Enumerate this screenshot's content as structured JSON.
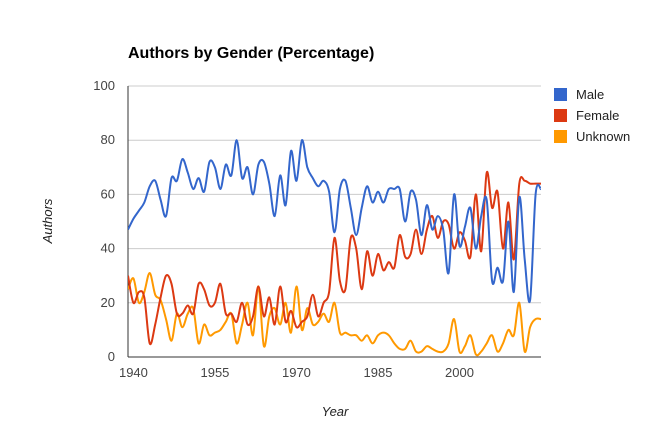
{
  "chart_data": {
    "type": "line",
    "title": "Authors by Gender (Percentage)",
    "xlabel": "Year",
    "ylabel": "Authors",
    "xlim": [
      1939,
      2015
    ],
    "ylim": [
      0,
      100
    ],
    "x_ticks": [
      "1940",
      "1955",
      "1970",
      "1985",
      "2000"
    ],
    "y_ticks": [
      "0",
      "20",
      "40",
      "60",
      "80",
      "100"
    ],
    "grid": true,
    "legend_position": "right",
    "x": [
      1939,
      1940,
      1941,
      1942,
      1943,
      1944,
      1945,
      1946,
      1947,
      1948,
      1949,
      1950,
      1951,
      1952,
      1953,
      1954,
      1955,
      1956,
      1957,
      1958,
      1959,
      1960,
      1961,
      1962,
      1963,
      1964,
      1965,
      1966,
      1967,
      1968,
      1969,
      1970,
      1971,
      1972,
      1973,
      1974,
      1975,
      1976,
      1977,
      1978,
      1979,
      1980,
      1981,
      1982,
      1983,
      1984,
      1985,
      1986,
      1987,
      1988,
      1989,
      1990,
      1991,
      1992,
      1993,
      1994,
      1995,
      1996,
      1997,
      1998,
      1999,
      2000,
      2001,
      2002,
      2003,
      2004,
      2005,
      2006,
      2007,
      2008,
      2009,
      2010,
      2011,
      2012,
      2013,
      2014,
      2015
    ],
    "series": [
      {
        "name": "Male",
        "color": "#3366cc",
        "values": [
          47,
          51,
          54,
          57,
          63,
          65,
          58,
          52,
          66,
          65,
          73,
          68,
          62,
          66,
          61,
          72,
          70,
          62,
          71,
          67,
          80,
          66,
          70,
          60,
          71,
          72,
          64,
          52,
          67,
          56,
          76,
          65,
          80,
          70,
          66,
          63,
          65,
          61,
          46,
          62,
          65,
          55,
          45,
          55,
          63,
          57,
          61,
          57,
          62,
          62,
          62,
          50,
          61,
          58,
          45,
          56,
          47,
          52,
          47,
          31,
          60,
          41,
          48,
          55,
          40,
          52,
          58,
          28,
          33,
          28,
          50,
          24,
          59,
          36,
          21,
          60,
          62
        ]
      },
      {
        "name": "Female",
        "color": "#dc3912",
        "values": [
          30,
          20,
          24,
          22,
          5,
          12,
          22,
          30,
          27,
          16,
          16,
          19,
          16,
          27,
          25,
          19,
          20,
          27,
          16,
          16,
          13,
          20,
          12,
          15,
          26,
          15,
          22,
          12,
          26,
          13,
          17,
          11,
          13,
          15,
          23,
          15,
          20,
          24,
          44,
          28,
          25,
          44,
          40,
          25,
          39,
          30,
          38,
          32,
          35,
          33,
          45,
          37,
          38,
          47,
          38,
          47,
          52,
          44,
          50,
          49,
          40,
          46,
          43,
          37,
          60,
          39,
          68,
          55,
          61,
          40,
          57,
          36,
          64,
          65,
          64,
          64,
          64
        ]
      },
      {
        "name": "Unknown",
        "color": "#ff9900",
        "values": [
          25,
          29,
          20,
          24,
          31,
          23,
          21,
          14,
          6,
          16,
          11,
          16,
          18,
          5,
          12,
          8,
          9,
          10,
          13,
          16,
          5,
          12,
          20,
          8,
          26,
          4,
          15,
          18,
          12,
          20,
          9,
          26,
          10,
          18,
          12,
          13,
          16,
          13,
          20,
          9,
          9,
          8,
          8,
          6,
          8,
          5,
          8,
          9,
          8,
          5,
          3,
          3,
          6,
          2,
          2,
          4,
          3,
          2,
          2,
          5,
          14,
          2,
          4,
          8,
          1,
          2,
          5,
          8,
          2,
          5,
          10,
          8,
          20,
          2,
          11,
          14,
          14
        ]
      }
    ]
  }
}
